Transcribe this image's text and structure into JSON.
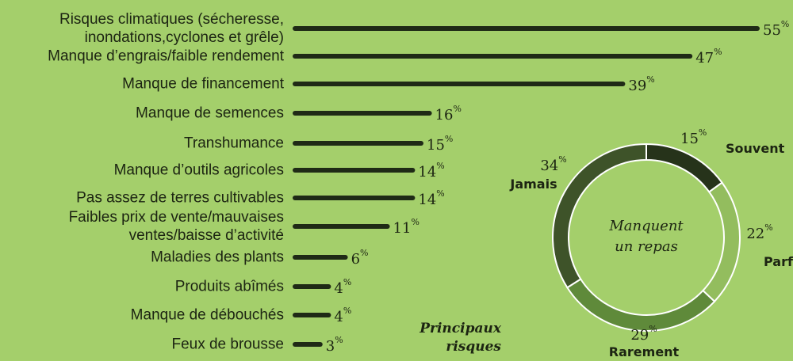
{
  "chart_data": [
    {
      "type": "bar",
      "title": "Principaux\nrisques",
      "categories": [
        "Risques climatiques (sécheresse,\ninondations,cyclones et grêle)",
        "Manque d’engrais/faible rendement",
        "Manque de financement",
        "Manque de semences",
        "Transhumance",
        "Manque d’outils agricoles",
        "Pas assez de terres cultivables",
        "Faibles prix de vente/mauvaises\nventes/baisse d’activité",
        "Maladies des plants",
        "Produits abîmés",
        "Manque de débouchés",
        "Feux de brousse"
      ],
      "values": [
        55,
        47,
        39,
        16,
        15,
        14,
        14,
        11,
        6,
        4,
        4,
        3
      ],
      "value_labels": [
        "55%",
        "47%",
        "39%",
        "16%",
        "15%",
        "14%",
        "14%",
        "11%",
        "6%",
        "4%",
        "4%",
        "3%"
      ],
      "color": "#1f2a16"
    },
    {
      "type": "pie",
      "title": "Manquent\nun repas",
      "categories": [
        "Souvent",
        "Parfois",
        "Rarement",
        "Jamais"
      ],
      "values": [
        15,
        22,
        29,
        34
      ],
      "value_labels": [
        "15%",
        "22%",
        "29%",
        "34%"
      ],
      "colors": [
        "#26331a",
        "#93bd5e",
        "#5f8a3a",
        "#3e5329"
      ]
    }
  ]
}
